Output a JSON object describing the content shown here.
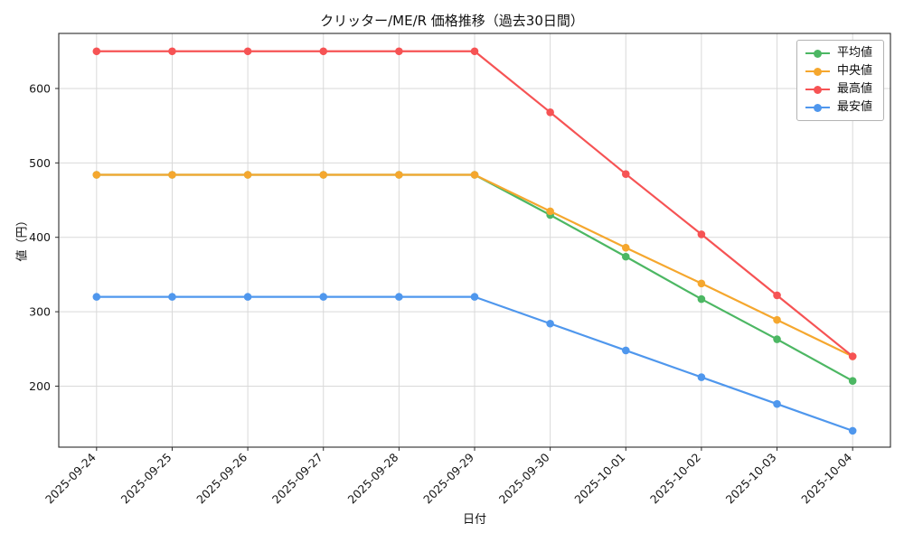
{
  "chart_data": {
    "type": "line",
    "title": "クリッター/ME/R 価格推移（過去30日間）",
    "xlabel": "日付",
    "ylabel": "値（円）",
    "x": [
      "2025-09-24",
      "2025-09-25",
      "2025-09-26",
      "2025-09-27",
      "2025-09-28",
      "2025-09-29",
      "2025-09-30",
      "2025-10-01",
      "2025-10-02",
      "2025-10-03",
      "2025-10-04"
    ],
    "series": [
      {
        "name": "平均値",
        "key": "average",
        "color": "#4cb763",
        "values": [
          484,
          484,
          484,
          484,
          484,
          484,
          430,
          374,
          317,
          263,
          207
        ]
      },
      {
        "name": "中央値",
        "key": "median",
        "color": "#f5a72e",
        "values": [
          484,
          484,
          484,
          484,
          484,
          484,
          435,
          386,
          338,
          289,
          240
        ]
      },
      {
        "name": "最高値",
        "key": "max",
        "color": "#f65354",
        "values": [
          650,
          650,
          650,
          650,
          650,
          650,
          568,
          485,
          404,
          322,
          240
        ]
      },
      {
        "name": "最安値",
        "key": "min",
        "color": "#4f97ed",
        "values": [
          320,
          320,
          320,
          320,
          320,
          320,
          284,
          248,
          212,
          176,
          140
        ]
      }
    ],
    "ylim": [
      118,
      674
    ],
    "yticks": [
      200,
      300,
      400,
      500,
      600
    ],
    "grid": true,
    "grid_color": "#d9d9d9",
    "axis_color": "#2b2b2b",
    "legend_position": "upper right"
  }
}
